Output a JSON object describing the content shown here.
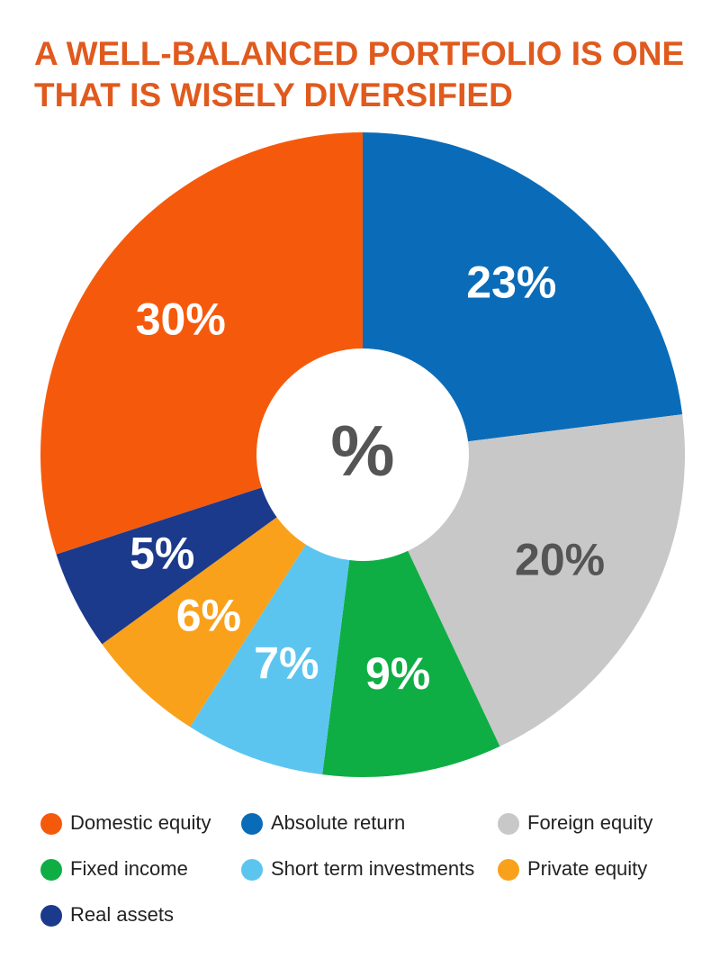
{
  "chart_data": {
    "type": "donut",
    "title_lines": [
      "A WELL-BALANCED PORTFOLIO IS ONE",
      "THAT IS WISELY DIVERSIFIED"
    ],
    "center_label": "%",
    "categories": [
      "Domestic equity",
      "Absolute return",
      "Foreign equity",
      "Fixed income",
      "Short term investments",
      "Private equity",
      "Real assets"
    ],
    "values": [
      30,
      23,
      20,
      9,
      7,
      6,
      5
    ],
    "value_labels": [
      "30%",
      "23%",
      "20%",
      "9%",
      "7%",
      "6%",
      "5%"
    ],
    "colors": [
      "#f55a0c",
      "#0a6cb8",
      "#c8c8c8",
      "#0fae45",
      "#5bc5f0",
      "#f9a11b",
      "#1b3a8c"
    ],
    "label_colors": [
      "#ffffff",
      "#ffffff",
      "#555555",
      "#ffffff",
      "#ffffff",
      "#ffffff",
      "#ffffff"
    ],
    "title_color": "#e05a1e"
  }
}
